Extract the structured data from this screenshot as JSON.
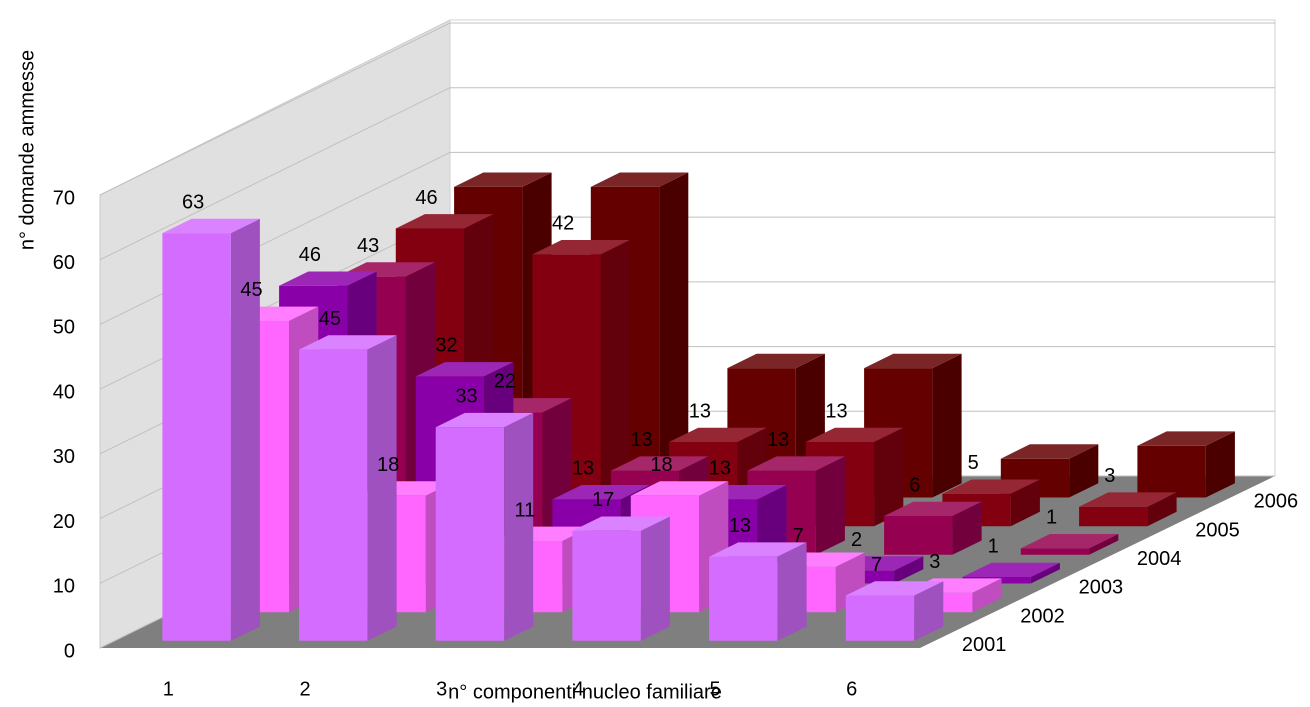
{
  "chart_data": {
    "type": "bar3d",
    "y_label": "n° domande ammesse",
    "x_label": "n° componenti nucleo familiare",
    "categories": [
      "1",
      "2",
      "3",
      "4",
      "5",
      "6"
    ],
    "series": [
      {
        "name": "2001",
        "color": "#d46cff",
        "values": [
          63,
          45,
          33,
          17,
          13,
          7
        ],
        "data_labels": true
      },
      {
        "name": "2002",
        "color": "#ff66ff",
        "values": [
          45,
          18,
          11,
          18,
          7,
          3
        ],
        "data_labels": true
      },
      {
        "name": "2003",
        "color": "#8a00a8",
        "values": [
          46,
          32,
          13,
          13,
          2,
          1
        ],
        "data_labels": true
      },
      {
        "name": "2004",
        "color": "#960050",
        "values": [
          43,
          22,
          13,
          13,
          6,
          1
        ],
        "data_labels": true
      },
      {
        "name": "2005",
        "color": "#820010",
        "values": [
          46,
          42,
          13,
          13,
          5,
          3
        ],
        "data_labels": true
      },
      {
        "name": "2006",
        "color": "#640000",
        "values": [
          48,
          48,
          20,
          20,
          6,
          8
        ],
        "data_labels": false
      }
    ],
    "ylim": [
      0,
      70
    ],
    "yticks": [
      0,
      10,
      20,
      30,
      40,
      50,
      60,
      70
    ],
    "grid": true
  }
}
